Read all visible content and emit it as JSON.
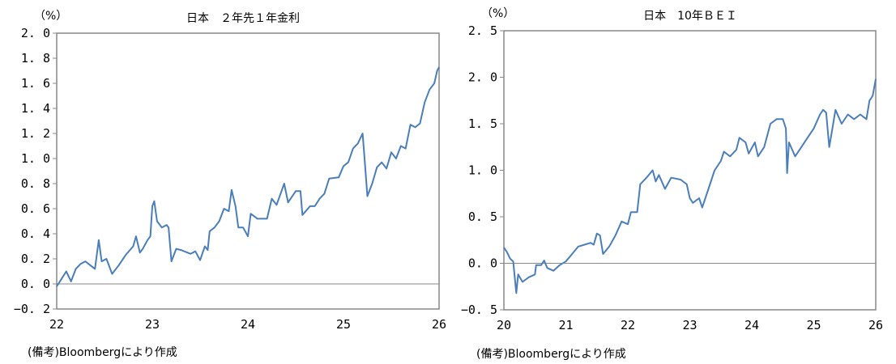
{
  "chart_data": [
    {
      "type": "line",
      "title": "日本　２年先１年金利",
      "ylabel": "（%）",
      "xlabel": "",
      "ylim": [
        -0.2,
        2.0
      ],
      "xlim": [
        22,
        26
      ],
      "yticks": [
        "-0.2",
        "0.0",
        "0.2",
        "0.4",
        "0.6",
        "0.8",
        "1.0",
        "1.2",
        "1.4",
        "1.6",
        "1.8",
        "2.0"
      ],
      "xticks": [
        "22",
        "23",
        "24",
        "25",
        "26"
      ],
      "note": "(備考)Bloombergにより作成",
      "color": "#4a7ebb",
      "series": [
        {
          "name": "日本 2年先1年金利",
          "x": [
            22.0,
            22.05,
            22.1,
            22.15,
            22.2,
            22.25,
            22.3,
            22.35,
            22.4,
            22.44,
            22.47,
            22.52,
            22.58,
            22.65,
            22.72,
            22.8,
            22.83,
            22.87,
            22.9,
            22.95,
            22.98,
            23.0,
            23.02,
            23.05,
            23.1,
            23.15,
            23.17,
            23.2,
            23.25,
            23.3,
            23.4,
            23.45,
            23.5,
            23.55,
            23.58,
            23.6,
            23.65,
            23.7,
            23.75,
            23.8,
            23.83,
            23.87,
            23.9,
            23.95,
            24.0,
            24.03,
            24.1,
            24.2,
            24.25,
            24.3,
            24.38,
            24.42,
            24.5,
            24.55,
            24.57,
            24.65,
            24.7,
            24.75,
            24.8,
            24.85,
            24.95,
            25.0,
            25.05,
            25.1,
            25.15,
            25.2,
            25.22,
            25.25,
            25.3,
            25.35,
            25.4,
            25.45,
            25.5,
            25.55,
            25.6,
            25.65,
            25.7,
            25.75,
            25.8,
            25.85,
            25.9,
            25.95,
            25.98,
            26.0
          ],
          "y": [
            -0.02,
            0.04,
            0.1,
            0.02,
            0.12,
            0.16,
            0.18,
            0.15,
            0.12,
            0.35,
            0.18,
            0.2,
            0.08,
            0.15,
            0.23,
            0.3,
            0.38,
            0.25,
            0.28,
            0.35,
            0.38,
            0.62,
            0.66,
            0.5,
            0.45,
            0.47,
            0.45,
            0.18,
            0.28,
            0.27,
            0.24,
            0.26,
            0.19,
            0.3,
            0.27,
            0.42,
            0.45,
            0.5,
            0.6,
            0.58,
            0.75,
            0.62,
            0.45,
            0.45,
            0.38,
            0.56,
            0.52,
            0.52,
            0.68,
            0.63,
            0.8,
            0.65,
            0.74,
            0.74,
            0.55,
            0.62,
            0.62,
            0.68,
            0.72,
            0.84,
            0.85,
            0.94,
            0.97,
            1.08,
            1.12,
            1.2,
            1.0,
            0.7,
            0.8,
            0.93,
            0.97,
            0.92,
            1.05,
            1.0,
            1.1,
            1.08,
            1.27,
            1.25,
            1.28,
            1.45,
            1.55,
            1.6,
            1.7,
            1.73
          ]
        }
      ]
    },
    {
      "type": "line",
      "title": "日本　10年ＢＥＩ",
      "ylabel": "（%）",
      "xlabel": "",
      "ylim": [
        -0.5,
        2.5
      ],
      "xlim": [
        20,
        26
      ],
      "yticks": [
        "-0.5",
        "0.0",
        "0.5",
        "1.0",
        "1.5",
        "2.0",
        "2.5"
      ],
      "xticks": [
        "20",
        "21",
        "22",
        "23",
        "24",
        "25",
        "26"
      ],
      "note": "(備考)Bloombergにより作成",
      "color": "#4a7ebb",
      "series": [
        {
          "name": "日本 10年BEI",
          "x": [
            20.0,
            20.05,
            20.1,
            20.15,
            20.2,
            20.23,
            20.3,
            20.4,
            20.5,
            20.52,
            20.6,
            20.65,
            20.7,
            20.8,
            20.9,
            21.0,
            21.1,
            21.2,
            21.3,
            21.4,
            21.45,
            21.5,
            21.55,
            21.6,
            21.7,
            21.8,
            21.9,
            22.0,
            22.05,
            22.15,
            22.2,
            22.3,
            22.4,
            22.45,
            22.5,
            22.6,
            22.7,
            22.85,
            22.95,
            23.0,
            23.05,
            23.15,
            23.2,
            23.3,
            23.4,
            23.5,
            23.55,
            23.65,
            23.75,
            23.8,
            23.9,
            23.95,
            24.05,
            24.1,
            24.2,
            24.3,
            24.4,
            24.5,
            24.55,
            24.57,
            24.6,
            24.7,
            24.8,
            24.9,
            25.0,
            25.1,
            25.15,
            25.2,
            25.25,
            25.3,
            25.35,
            25.45,
            25.55,
            25.65,
            25.75,
            25.85,
            25.9,
            25.95,
            26.0
          ],
          "y": [
            0.17,
            0.12,
            0.05,
            0.02,
            -0.32,
            -0.12,
            -0.2,
            -0.15,
            -0.12,
            -0.02,
            -0.02,
            0.03,
            -0.05,
            -0.08,
            -0.02,
            0.02,
            0.1,
            0.18,
            0.2,
            0.22,
            0.2,
            0.32,
            0.3,
            0.1,
            0.18,
            0.3,
            0.45,
            0.42,
            0.55,
            0.55,
            0.85,
            0.92,
            1.0,
            0.88,
            0.95,
            0.8,
            0.92,
            0.9,
            0.85,
            0.7,
            0.65,
            0.7,
            0.6,
            0.8,
            1.0,
            1.1,
            1.2,
            1.15,
            1.22,
            1.35,
            1.3,
            1.18,
            1.3,
            1.15,
            1.25,
            1.5,
            1.55,
            1.55,
            1.45,
            0.97,
            1.3,
            1.15,
            1.25,
            1.35,
            1.45,
            1.6,
            1.65,
            1.62,
            1.25,
            1.45,
            1.65,
            1.5,
            1.6,
            1.55,
            1.6,
            1.55,
            1.75,
            1.8,
            1.98
          ]
        }
      ]
    }
  ]
}
